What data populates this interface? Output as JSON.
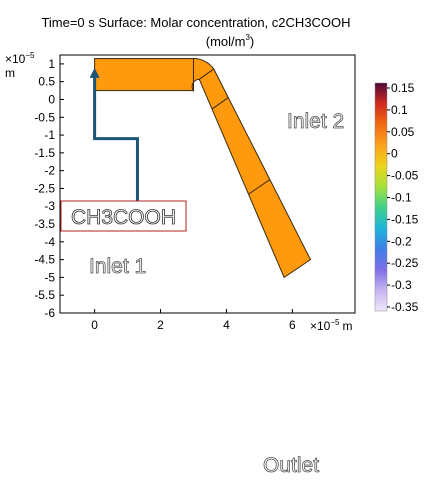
{
  "chart_data": {
    "type": "heatmap",
    "title_line1": "Time=0 s Surface: Molar concentration, c2CH3COOH",
    "title_units": "(mol/m",
    "title_units_sup": "3",
    "title_units_end": ")",
    "y_scale_label": "×10",
    "y_scale_exp": "−5",
    "y_unit": "m",
    "x_scale_label": "×10",
    "x_scale_exp": "−5",
    "x_unit": "m",
    "xlim": [
      -1.05,
      7.9
    ],
    "ylim": [
      -6,
      1.25
    ],
    "x_ticks": [
      0,
      2,
      4,
      6
    ],
    "x_tick_labels": [
      "0",
      "2",
      "4",
      "6"
    ],
    "y_ticks": [
      1,
      0.5,
      0,
      -0.5,
      -1,
      -1.5,
      -2,
      -2.5,
      -3,
      -3.5,
      -4,
      -4.5,
      -5,
      -5.5,
      -6
    ],
    "y_tick_labels": [
      "1",
      "0.5",
      "0",
      "-0.5",
      "-1",
      "-1.5",
      "-2",
      "-2.5",
      "-3",
      "-3.5",
      "-4",
      "-4.5",
      "-5",
      "-5.5",
      "-6"
    ],
    "domain_color": "#ff9a0e",
    "domain_stroke": "#3a2a10",
    "channel": {
      "straight_x": [
        0,
        3.0
      ],
      "straight_y": [
        0.25,
        1.15
      ],
      "bend_center": [
        3.0,
        0.45
      ],
      "bend_inner_r": 0.2,
      "bend_outer_r": 0.7,
      "diag_end_inner": [
        6.55,
        -4.5
      ],
      "diag_end_outer": [
        5.75,
        -5.0
      ],
      "diag_divisions_t": [
        0.15,
        0.58
      ]
    },
    "colorbar": {
      "min": -0.35,
      "max": 0.15,
      "tick_labels": [
        "0.15",
        "0.1",
        "0.05",
        "0",
        "-0.05",
        "-0.1",
        "-0.15",
        "-0.2",
        "-0.25",
        "-0.3",
        "-0.35"
      ],
      "colors": [
        "#4d0a3c",
        "#d02a1e",
        "#f16a12",
        "#fba21d",
        "#ecd41c",
        "#a6e23a",
        "#3fd08c",
        "#1fb4d9",
        "#3f7fe8",
        "#7d6fe6",
        "#c7b4f2",
        "#efe8fb"
      ]
    },
    "annotations": {
      "inlet2_label": "Inlet 2",
      "inlet1_label": "Inlet 1",
      "species_label": "CH3COOH",
      "outlet_label": "Outlet",
      "arrow_color": "#1e5577",
      "box_border_color": "#b22222"
    }
  }
}
